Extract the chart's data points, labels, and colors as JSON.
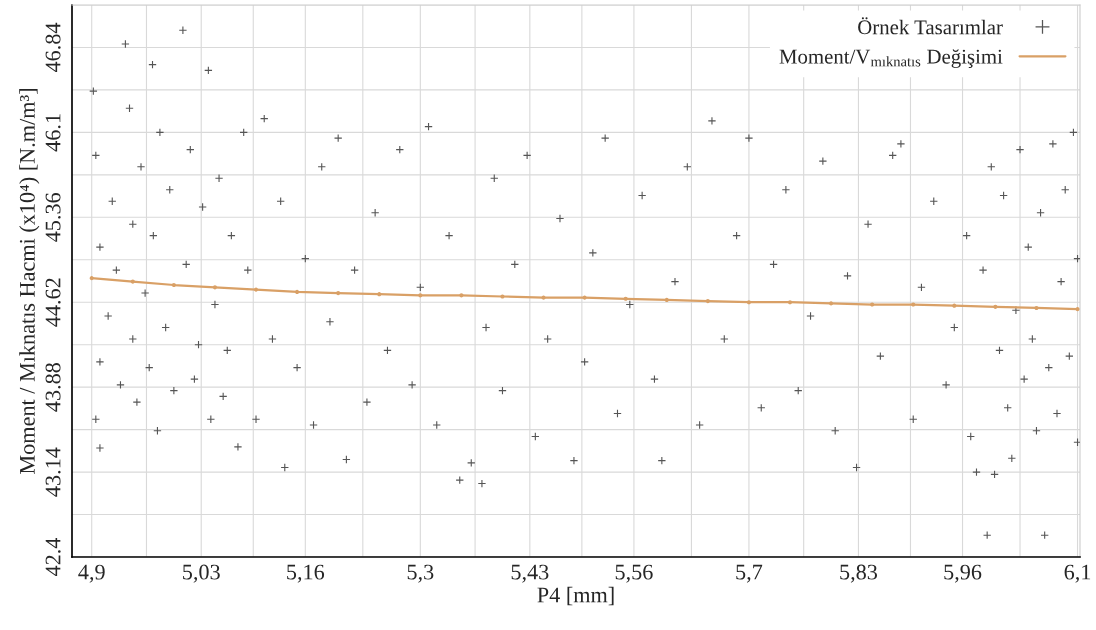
{
  "chart_data": {
    "type": "scatter",
    "xlabel": "P4 [mm]",
    "ylabel": "Moment / Mıknatıs Hacmi (x10⁴) [N.m/m³]",
    "xlim": [
      4.876,
      6.103
    ],
    "ylim": [
      42.4,
      47.21
    ],
    "xticks": [
      {
        "value": 4.9,
        "label": "4,9"
      },
      {
        "value": 5.0333,
        "label": "5,03"
      },
      {
        "value": 5.16,
        "label": "5,16"
      },
      {
        "value": 5.3,
        "label": "5,3"
      },
      {
        "value": 5.4333,
        "label": "5,43"
      },
      {
        "value": 5.56,
        "label": "5,56"
      },
      {
        "value": 5.7,
        "label": "5,7"
      },
      {
        "value": 5.8333,
        "label": "5,83"
      },
      {
        "value": 5.96,
        "label": "5,96"
      },
      {
        "value": 6.1,
        "label": "6,1"
      }
    ],
    "yticks": [
      42.4,
      43.14,
      43.88,
      44.62,
      45.36,
      46.1,
      46.84
    ],
    "grid": true,
    "legend": "top right",
    "series": [
      {
        "name": "Örnek Tasarımlar",
        "marker": "cross",
        "color": "#555555",
        "x": [
          4.902,
          4.905,
          4.91,
          4.91,
          4.905,
          4.91,
          4.92,
          4.925,
          4.93,
          4.935,
          4.941,
          4.946,
          4.95,
          4.95,
          4.955,
          4.96,
          4.965,
          4.97,
          4.974,
          4.975,
          4.98,
          4.983,
          4.99,
          4.995,
          5.0,
          5.011,
          5.015,
          5.02,
          5.025,
          5.03,
          5.035,
          5.042,
          5.045,
          5.05,
          5.055,
          5.06,
          5.065,
          5.07,
          5.078,
          5.085,
          5.09,
          5.1,
          5.11,
          5.12,
          5.13,
          5.135,
          5.15,
          5.16,
          5.17,
          5.18,
          5.19,
          5.2,
          5.21,
          5.22,
          5.235,
          5.245,
          5.26,
          5.275,
          5.29,
          5.3,
          5.31,
          5.32,
          5.335,
          5.348,
          5.362,
          5.375,
          5.38,
          5.39,
          5.4,
          5.415,
          5.43,
          5.44,
          5.455,
          5.47,
          5.487,
          5.5,
          5.51,
          5.525,
          5.54,
          5.555,
          5.57,
          5.585,
          5.594,
          5.61,
          5.625,
          5.64,
          5.655,
          5.67,
          5.685,
          5.7,
          5.715,
          5.73,
          5.745,
          5.76,
          5.775,
          5.79,
          5.805,
          5.82,
          5.831,
          5.845,
          5.86,
          5.875,
          5.885,
          5.9,
          5.91,
          5.925,
          5.94,
          5.95,
          5.965,
          5.97,
          5.977,
          5.985,
          5.99,
          5.995,
          5.999,
          6.005,
          6.01,
          6.015,
          6.02,
          6.025,
          6.03,
          6.035,
          6.04,
          6.045,
          6.05,
          6.055,
          6.06,
          6.065,
          6.07,
          6.075,
          6.08,
          6.085,
          6.09,
          6.095,
          6.1,
          6.1
        ],
        "values": [
          46.46,
          45.9,
          45.1,
          44.1,
          43.6,
          43.35,
          44.5,
          45.5,
          44.9,
          43.9,
          46.87,
          46.31,
          45.3,
          44.3,
          43.75,
          45.8,
          44.7,
          44.05,
          46.69,
          45.2,
          43.5,
          46.1,
          44.4,
          45.6,
          43.85,
          46.99,
          44.95,
          45.95,
          43.95,
          44.25,
          45.45,
          46.64,
          43.6,
          44.6,
          45.7,
          43.8,
          44.2,
          45.2,
          43.36,
          46.1,
          44.9,
          43.6,
          46.22,
          44.3,
          45.5,
          43.18,
          44.05,
          45.0,
          43.55,
          45.8,
          44.45,
          46.05,
          43.25,
          44.9,
          43.75,
          45.4,
          44.2,
          45.95,
          43.9,
          44.75,
          46.15,
          43.55,
          45.2,
          43.07,
          43.22,
          43.04,
          44.4,
          45.7,
          43.85,
          44.95,
          45.9,
          43.45,
          44.3,
          45.35,
          43.24,
          44.1,
          45.05,
          46.05,
          43.65,
          44.6,
          45.55,
          43.95,
          43.24,
          44.8,
          45.8,
          43.55,
          46.2,
          44.3,
          45.2,
          46.05,
          43.7,
          44.95,
          45.6,
          43.85,
          44.5,
          45.85,
          43.5,
          44.85,
          43.18,
          45.3,
          44.15,
          45.9,
          46.0,
          43.6,
          44.75,
          45.5,
          43.9,
          44.4,
          45.2,
          43.45,
          43.14,
          44.9,
          42.59,
          45.8,
          43.12,
          44.2,
          45.55,
          43.7,
          43.26,
          44.55,
          45.95,
          43.95,
          45.1,
          44.3,
          43.5,
          45.4,
          42.59,
          44.05,
          46.0,
          43.65,
          44.8,
          45.6,
          44.15,
          46.1,
          43.4,
          45.0
        ]
      },
      {
        "name": "Moment/V$_{mıknatıs}$ Değişimi",
        "type": "line",
        "marker": "circle",
        "color": "#d9a066",
        "x": [
          4.9,
          4.95,
          5.0,
          5.05,
          5.1,
          5.15,
          5.2,
          5.25,
          5.3,
          5.35,
          5.4,
          5.45,
          5.5,
          5.55,
          5.6,
          5.65,
          5.7,
          5.75,
          5.8,
          5.85,
          5.9,
          5.95,
          6.0,
          6.05,
          6.1
        ],
        "values": [
          44.83,
          44.8,
          44.77,
          44.75,
          44.73,
          44.71,
          44.7,
          44.69,
          44.68,
          44.68,
          44.67,
          44.66,
          44.66,
          44.65,
          44.64,
          44.63,
          44.62,
          44.62,
          44.61,
          44.6,
          44.6,
          44.59,
          44.58,
          44.57,
          44.56
        ]
      }
    ]
  }
}
